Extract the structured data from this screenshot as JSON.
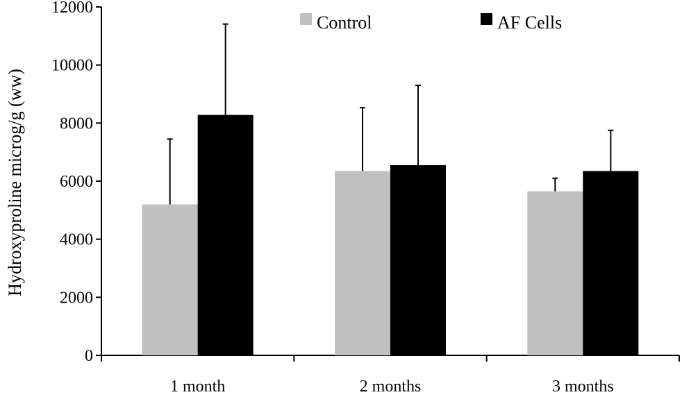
{
  "chart_data": {
    "type": "bar",
    "title": "",
    "xlabel": "",
    "ylabel": "Hydroxyproline microg/g (ww)",
    "ylim": [
      0,
      12000
    ],
    "yticks": [
      0,
      2000,
      4000,
      6000,
      8000,
      10000,
      12000
    ],
    "categories": [
      "1 month",
      "2 months",
      "3 months"
    ],
    "series": [
      {
        "name": "Control",
        "values": [
          5200,
          6350,
          5650
        ],
        "errors": [
          2250,
          2180,
          450
        ],
        "color": "#c0c0c0"
      },
      {
        "name": "AF Cells",
        "values": [
          8280,
          6550,
          6350
        ],
        "errors": [
          3130,
          2750,
          1400
        ],
        "color": "#000000"
      }
    ],
    "legend_position": "top",
    "grid": false
  }
}
